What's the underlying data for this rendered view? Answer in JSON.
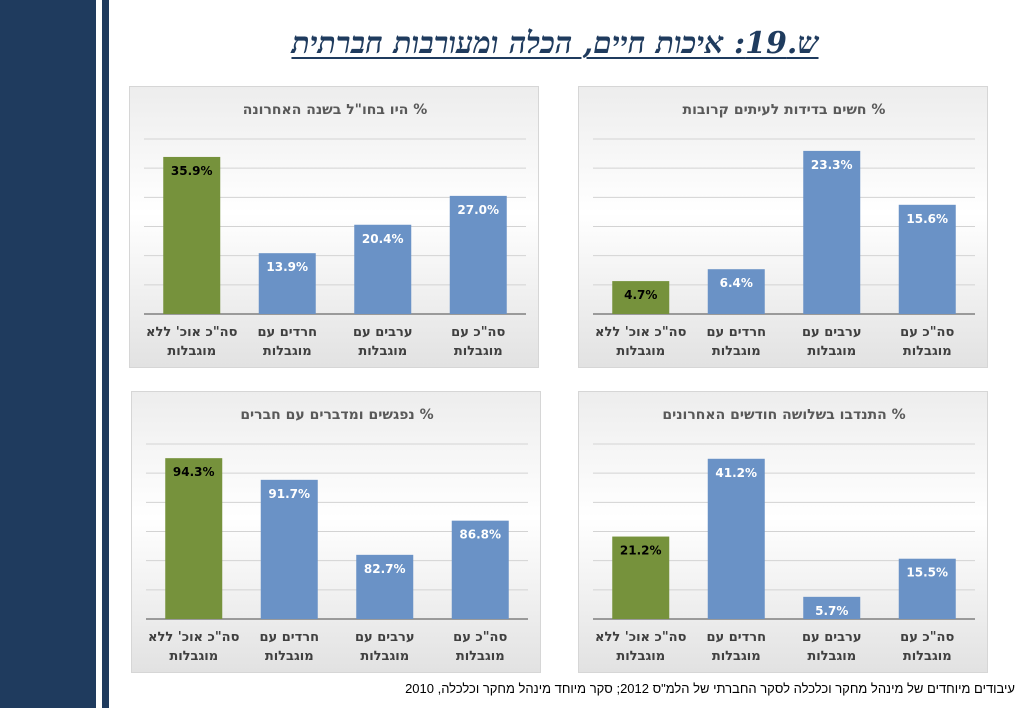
{
  "page": {
    "title": "ש.19: איכות חיים, הכלה ומעורבות חברתית",
    "source_note": "עיבודים מיוחדים של מינהל מחקר וכלכלה  לסקר החברתי של הלמ\"ס 2012;  סקר מיוחד מינהל מחקר וכלכלה, 2010"
  },
  "colors": {
    "blue": "#6a92c6",
    "green": "#76923c",
    "sidebar": "#1f3b5e"
  },
  "chart_data": [
    {
      "type": "bar",
      "title": "% חשים בדידות לעיתים קרובות",
      "categories": [
        "סה\"כ עם מוגבלות",
        "ערבים עם מוגבלות",
        "חרדים עם מוגבלות",
        "סה\"כ אוכ' ללא מוגבלות"
      ],
      "values": [
        15.6,
        23.3,
        6.4,
        4.7
      ],
      "value_labels": [
        "15.6%",
        "23.3%",
        "6.4%",
        "4.7%"
      ],
      "highlight_index": 3,
      "ylim": [
        0,
        25
      ]
    },
    {
      "type": "bar",
      "title": "% היו בחו\"ל בשנה האחרונה",
      "categories": [
        "סה\"כ עם מוגבלות",
        "ערבים עם מוגבלות",
        "חרדים עם מוגבלות",
        "סה\"כ אוכ' ללא מוגבלות"
      ],
      "values": [
        27.0,
        20.4,
        13.9,
        35.9
      ],
      "value_labels": [
        "27.0%",
        "20.4%",
        "13.9%",
        "35.9%"
      ],
      "highlight_index": 3,
      "ylim": [
        0,
        40
      ]
    },
    {
      "type": "bar",
      "title": "% התנדבו בשלושה חודשים האחרונים",
      "categories": [
        "סה\"כ עם מוגבלות",
        "ערבים עם מוגבלות",
        "חרדים עם מוגבלות",
        "סה\"כ אוכ' ללא מוגבלות"
      ],
      "values": [
        15.5,
        5.7,
        41.2,
        21.2
      ],
      "value_labels": [
        "15.5%",
        "5.7%",
        "41.2%",
        "21.2%"
      ],
      "highlight_index": 3,
      "ylim": [
        0,
        45
      ]
    },
    {
      "type": "bar",
      "title": "% נפגשים ומדברים עם חברים",
      "categories": [
        "סה\"כ עם מוגבלות",
        "ערבים עם מוגבלות",
        "חרדים עם מוגבלות",
        "סה\"כ אוכ' ללא מוגבלות"
      ],
      "values": [
        86.8,
        82.7,
        91.7,
        94.3
      ],
      "value_labels": [
        "86.8%",
        "82.7%",
        "91.7%",
        "94.3%"
      ],
      "highlight_index": 3,
      "ylim": [
        75,
        96
      ]
    }
  ]
}
